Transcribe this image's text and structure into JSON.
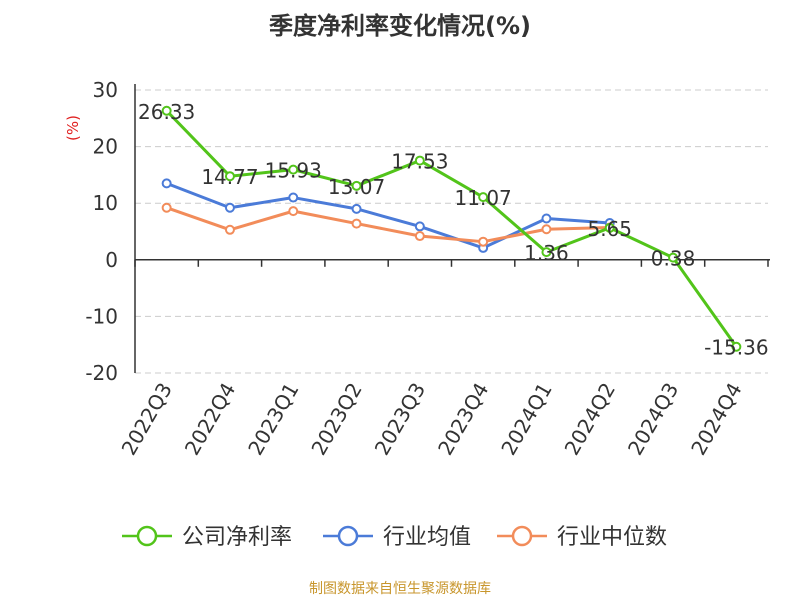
{
  "colors": {
    "company": "#52c41a",
    "industry_avg": "#4b7bd8",
    "industry_median": "#f28c5a",
    "ylabel": "#e02020",
    "footer": "#c8962c",
    "grid": "#cccccc",
    "axis": "#333333",
    "text": "#333333"
  },
  "chart_data": {
    "type": "line",
    "title": "季度净利率变化情况(%)",
    "xlabel": "",
    "ylabel": "(%)",
    "categories": [
      "2022Q3",
      "2022Q4",
      "2023Q1",
      "2023Q2",
      "2023Q3",
      "2023Q4",
      "2024Q1",
      "2024Q2",
      "2024Q3",
      "2024Q4"
    ],
    "ylim": [
      -20,
      30
    ],
    "yticks": [
      30,
      20,
      10,
      0,
      -10,
      -20
    ],
    "grid": "horizontal dashed",
    "legend_position": "bottom",
    "series": [
      {
        "name": "公司净利率",
        "values": [
          26.33,
          14.77,
          15.93,
          13.07,
          17.53,
          11.07,
          1.36,
          5.65,
          0.38,
          -15.36
        ],
        "labels": [
          "26.33",
          "14.77",
          "15.93",
          "13.07",
          "17.53",
          "11.07",
          "1.36",
          "5.65",
          "0.38",
          "-15.36"
        ]
      },
      {
        "name": "行业均值",
        "values": [
          13.5,
          9.2,
          11.0,
          9.0,
          5.9,
          2.1,
          7.3,
          6.5,
          null,
          null
        ]
      },
      {
        "name": "行业中位数",
        "values": [
          9.2,
          5.3,
          8.6,
          6.4,
          4.2,
          3.2,
          5.4,
          5.7,
          null,
          null
        ]
      }
    ]
  },
  "footer": {
    "source": "制图数据来自恒生聚源数据库"
  }
}
